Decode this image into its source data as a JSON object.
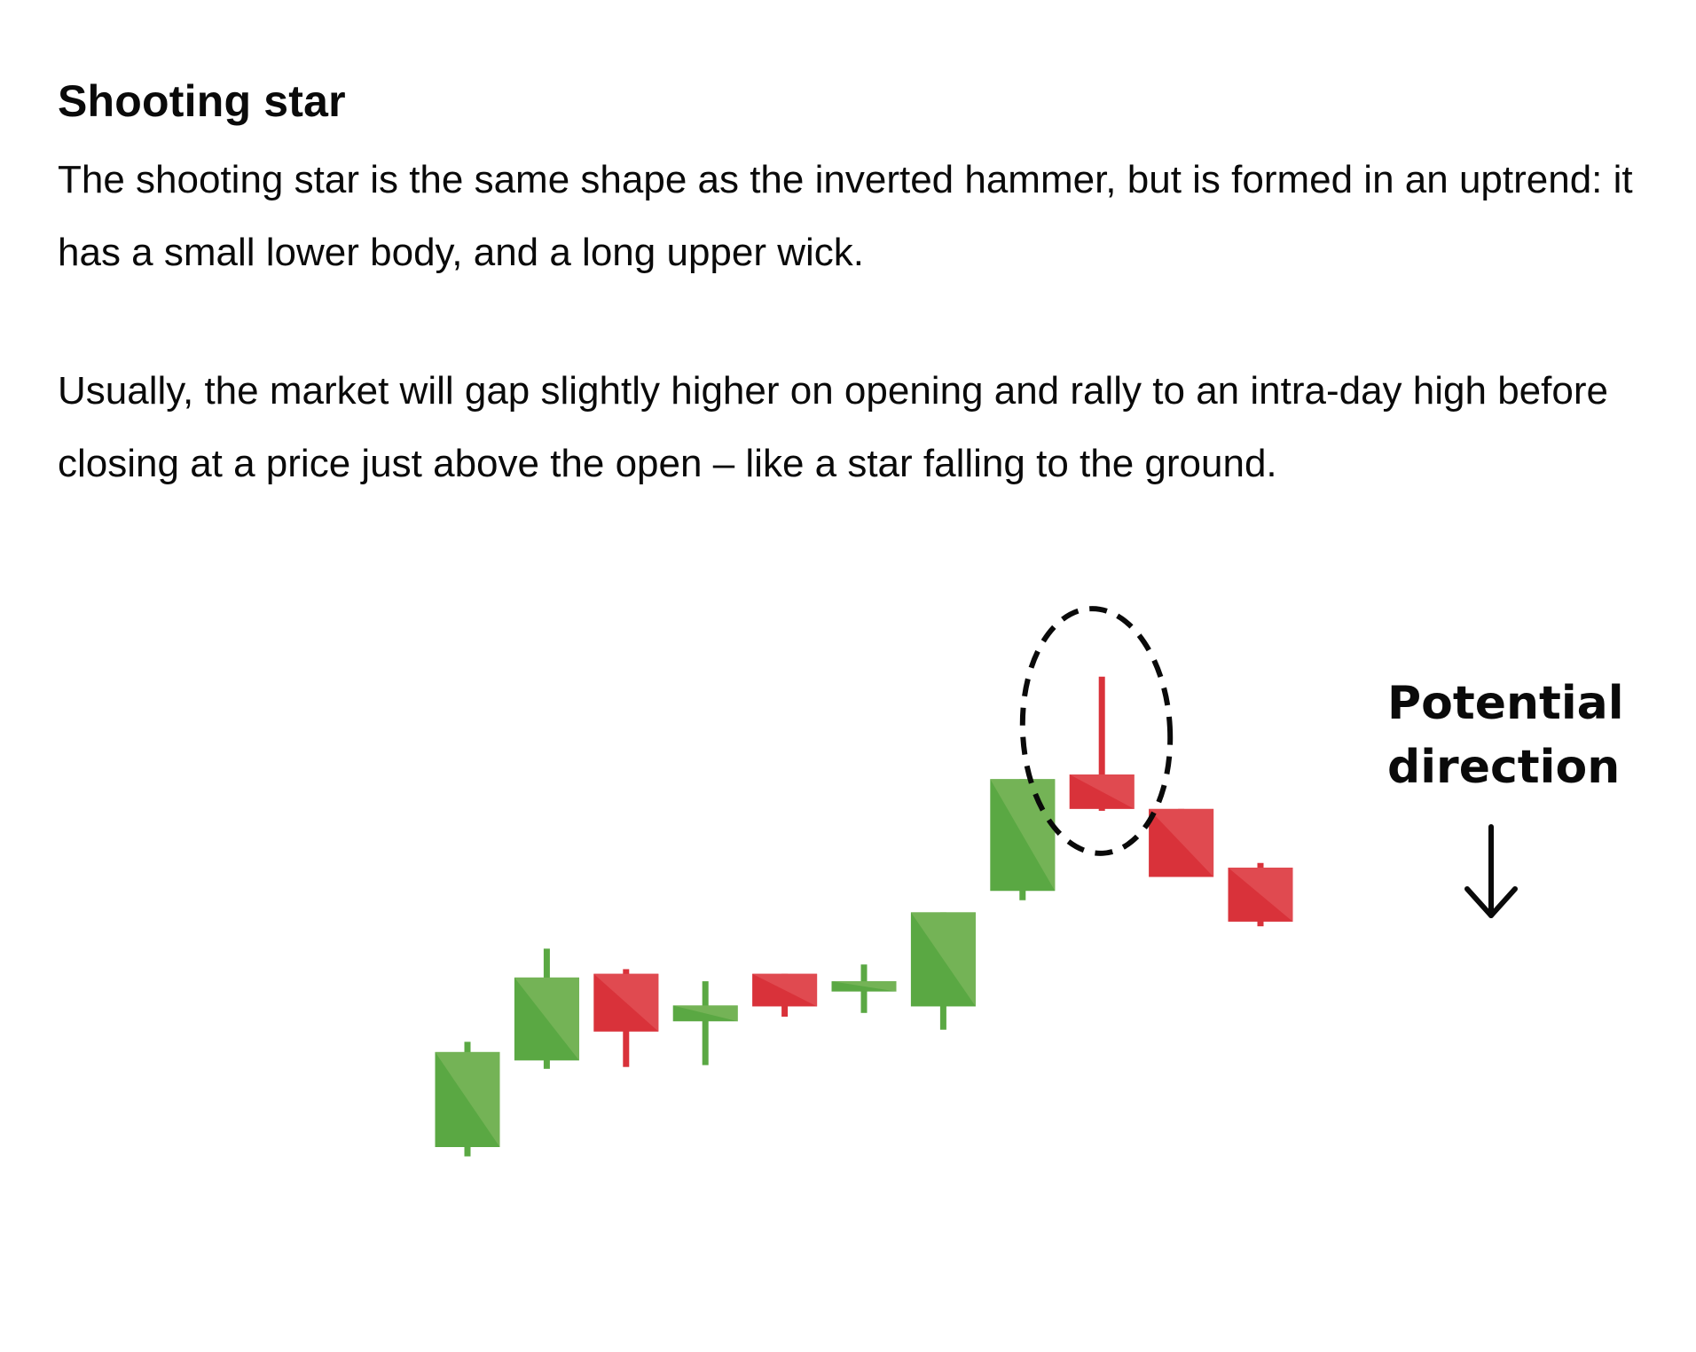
{
  "article": {
    "heading": "Shooting star",
    "paragraphs": [
      "The shooting star is the same shape as the inverted hammer, but is formed in an uptrend: it has a small lower body, and a long upper wick.",
      "Usually, the market will gap slightly higher on opening and rally to an intra-day high before closing at a price just above the open – like a star falling to the ground."
    ]
  },
  "figure": {
    "annotation_lines": [
      "Potential",
      "direction"
    ],
    "arrow_icon": "down-arrow-icon",
    "highlight": "dashed-ellipse around candle 9",
    "colors": {
      "bull": "#5aa843",
      "bull_light": "#74b356",
      "bear": "#d9323a",
      "bear_light": "#e04a50",
      "outline": "#0a0a0a"
    },
    "chart_data": {
      "type": "candlestick",
      "highlighted_index": 8,
      "candles": [
        {
          "open": 14.0,
          "close": 24.2,
          "high": 25.3,
          "low": 13.0,
          "dir": "up"
        },
        {
          "open": 23.3,
          "close": 32.2,
          "high": 35.3,
          "low": 22.4,
          "dir": "up"
        },
        {
          "open": 32.6,
          "close": 26.4,
          "high": 33.1,
          "low": 22.6,
          "dir": "down"
        },
        {
          "open": 27.5,
          "close": 29.2,
          "high": 31.8,
          "low": 22.8,
          "dir": "up"
        },
        {
          "open": 32.6,
          "close": 29.1,
          "high": 32.6,
          "low": 28.0,
          "dir": "down"
        },
        {
          "open": 30.7,
          "close": 31.8,
          "high": 33.6,
          "low": 28.4,
          "dir": "up"
        },
        {
          "open": 29.1,
          "close": 39.2,
          "high": 39.2,
          "low": 26.6,
          "dir": "up"
        },
        {
          "open": 41.5,
          "close": 53.5,
          "high": 53.5,
          "low": 40.5,
          "dir": "up"
        },
        {
          "open": 54.0,
          "close": 50.3,
          "high": 64.5,
          "low": 50.1,
          "dir": "down"
        },
        {
          "open": 50.3,
          "close": 43.0,
          "high": 50.3,
          "low": 43.0,
          "dir": "down"
        },
        {
          "open": 44.0,
          "close": 38.2,
          "high": 44.5,
          "low": 37.7,
          "dir": "down"
        }
      ]
    }
  }
}
